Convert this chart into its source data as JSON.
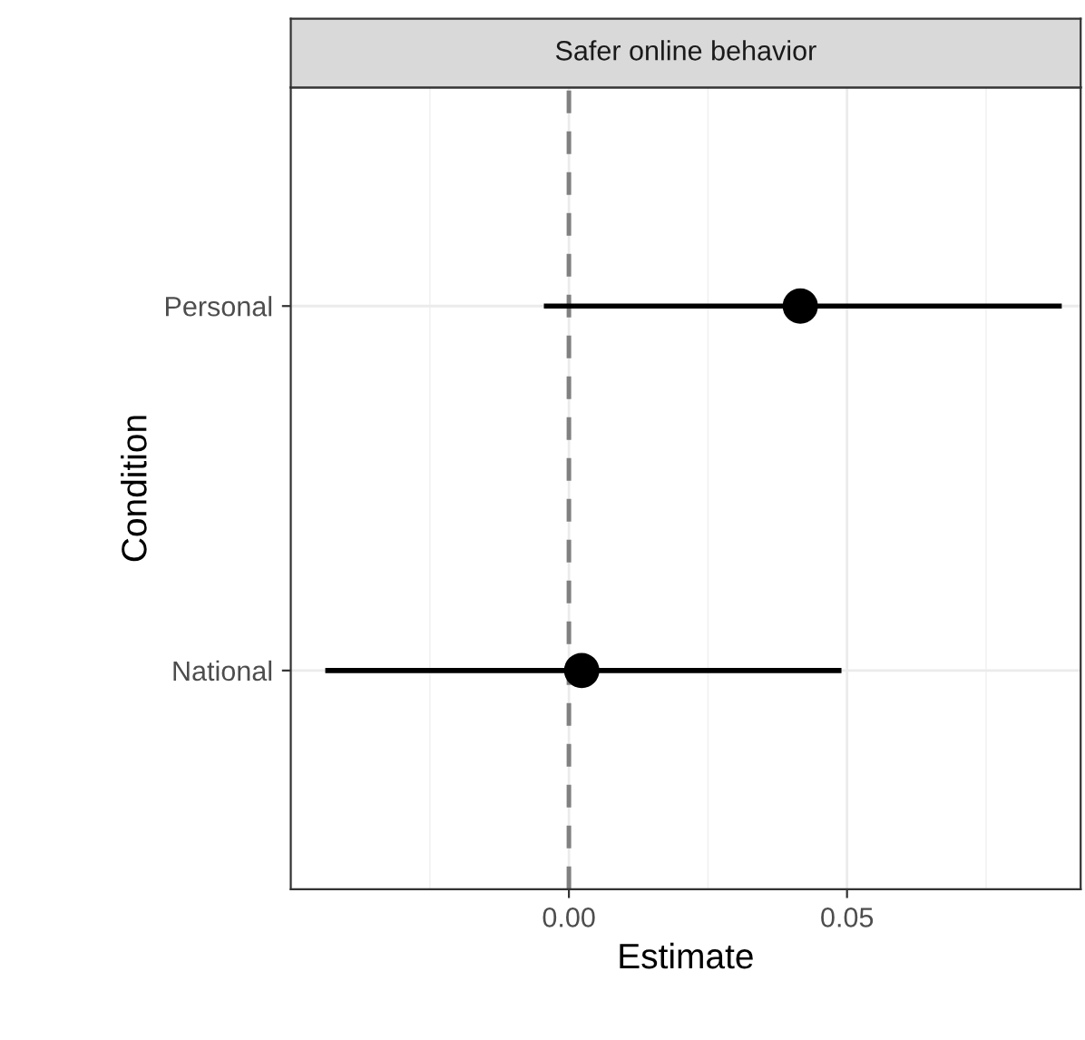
{
  "chart_data": {
    "type": "scatter",
    "title": "Safer online behavior",
    "xlabel": "Estimate",
    "ylabel": "Condition",
    "orientation": "horizontal",
    "categories": [
      "Personal",
      "National"
    ],
    "series": [
      {
        "color": "#000000",
        "values": [
          0.0416,
          0.0023
        ],
        "errors": [
          [
            -0.0045,
            0.0886
          ],
          [
            -0.0438,
            0.049
          ]
        ]
      }
    ],
    "xlim": [
      -0.05,
      0.092
    ],
    "xticks": [
      {
        "value": 0,
        "label": "0.00"
      },
      {
        "value": 0.05,
        "label": "0.05"
      }
    ],
    "ref_lines": [
      {
        "axis": "x",
        "value": 0,
        "color": "#808080",
        "line_style": "dashed"
      }
    ],
    "grid": true,
    "marker": "circle",
    "legend": false
  }
}
